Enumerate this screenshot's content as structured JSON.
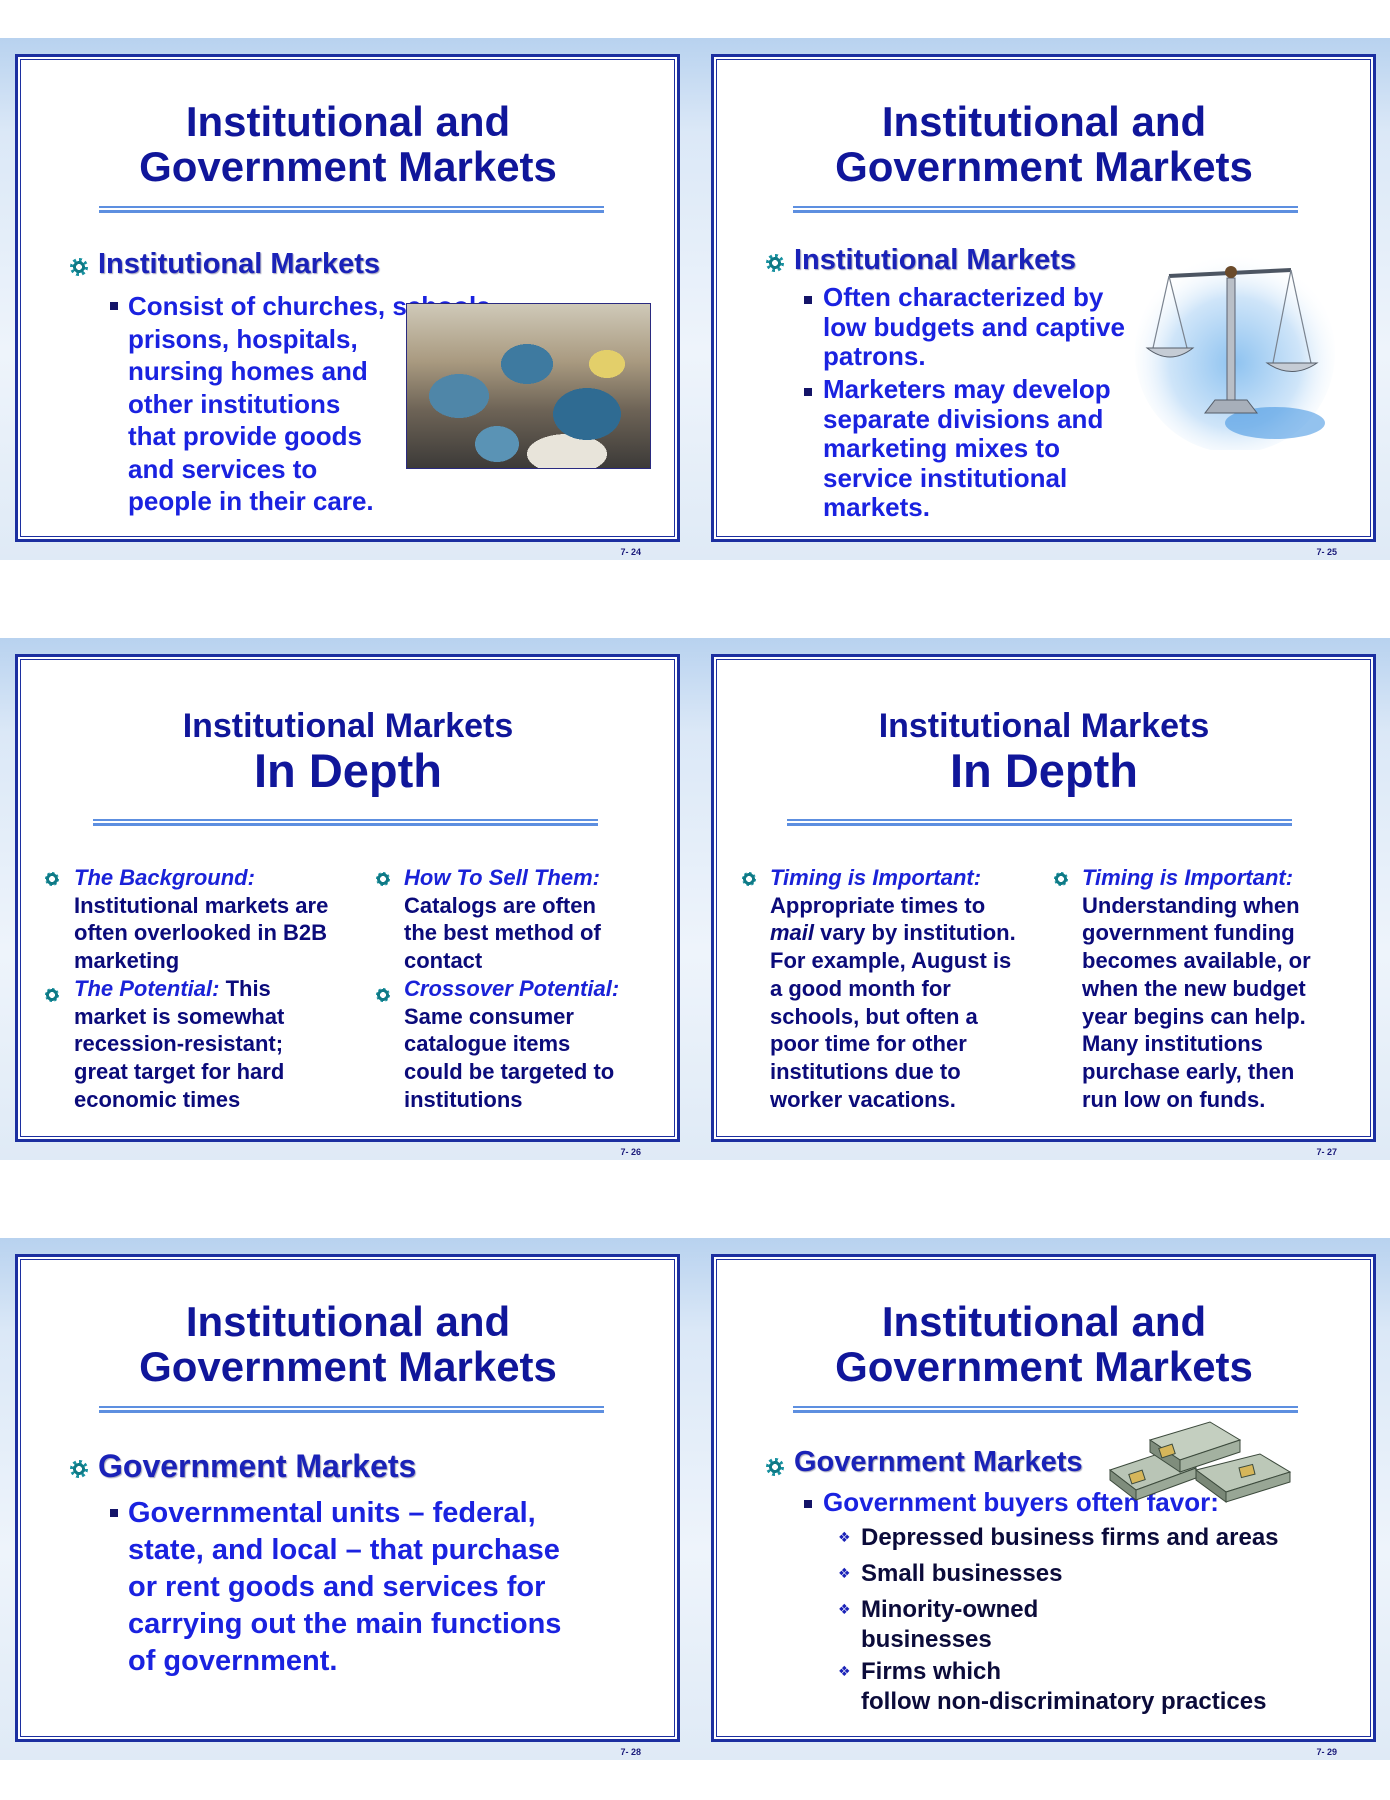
{
  "slides": [
    {
      "number": "7- 24",
      "title_line1": "Institutional and",
      "title_line2": "Government Markets",
      "heading": "Institutional Markets",
      "bullet_lines": [
        "Consist of churches, schools,",
        "prisons, hospitals,",
        "nursing homes and",
        "other institutions",
        "that provide goods",
        "and services to",
        "people in their care."
      ]
    },
    {
      "number": "7- 25",
      "title_line1": "Institutional and",
      "title_line2": "Government Markets",
      "heading": "Institutional Markets",
      "bullet1_lines": [
        "Often characterized by",
        "low budgets and captive",
        "patrons."
      ],
      "bullet2_lines": [
        "Marketers may develop",
        "separate divisions and",
        "marketing mixes to",
        "service institutional",
        "markets."
      ]
    },
    {
      "number": "7- 26",
      "title_line1": "Institutional Markets",
      "title_line2": "In Depth",
      "left": {
        "b1_lead": "The Background:",
        "b1_lines": [
          "Institutional markets are",
          "often overlooked in B2B",
          "marketing"
        ],
        "b2_lead": "The Potential:",
        "b2_first": " This",
        "b2_lines": [
          "market is somewhat",
          "recession-resistant;",
          "great target for hard",
          "economic times"
        ]
      },
      "right": {
        "b1_lead": "How To Sell Them:",
        "b1_lines": [
          "Catalogs are often",
          "the best method of",
          "contact"
        ],
        "b2_lead": "Crossover Potential:",
        "b2_lines": [
          "Same consumer",
          "catalogue items",
          "could be targeted to",
          "institutions"
        ]
      }
    },
    {
      "number": "7- 27",
      "title_line1": "Institutional Markets",
      "title_line2": "In Depth",
      "left": {
        "lead": "Timing is Important:",
        "line1": "Appropriate times to",
        "line2_em": "mail",
        "line2_rest": " vary by institution.",
        "lines": [
          "For example, August is",
          "a good month for",
          "schools, but often a",
          "poor time for other",
          "institutions due to",
          "worker vacations."
        ]
      },
      "right": {
        "lead": "Timing is Important:",
        "lines": [
          "Understanding when",
          "government funding",
          "becomes available, or",
          "when the new budget",
          "year begins can help.",
          "Many institutions",
          "purchase early, then",
          "run low on funds."
        ]
      }
    },
    {
      "number": "7- 28",
      "title_line1": "Institutional and",
      "title_line2": "Government Markets",
      "heading": "Government Markets",
      "bullet_lines": [
        "Governmental units – federal,",
        "state, and local – that purchase",
        "or rent goods and services for",
        "carrying out the main functions",
        "of government."
      ]
    },
    {
      "number": "7- 29",
      "title_line1": "Institutional and",
      "title_line2": "Government Markets",
      "heading": "Government Markets",
      "bullet": "Government buyers often favor:",
      "sub": [
        [
          "Depressed business firms and areas"
        ],
        [
          "Small businesses"
        ],
        [
          "Minority-owned",
          "businesses"
        ],
        [
          "Firms which",
          "follow non-discriminatory practices"
        ]
      ]
    }
  ],
  "icons": {
    "level1_bullet": "gear-bullet-icon",
    "level2_bullet": "square-bullet-icon",
    "level3_bullet": "diamond-bullet-icon"
  },
  "colors": {
    "title": "#10169a",
    "bullet_text": "#1a22e0",
    "frame": "#1c2fa0",
    "rule": "#5d8fe0"
  }
}
